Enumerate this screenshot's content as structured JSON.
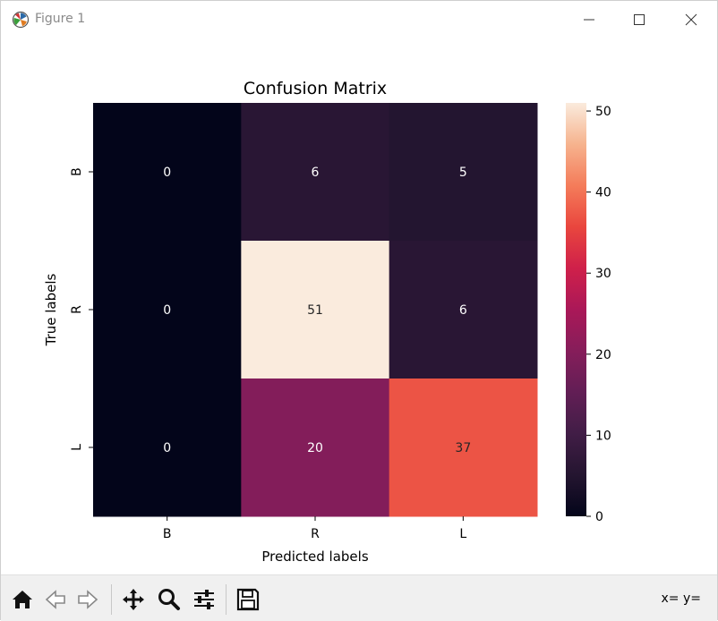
{
  "window": {
    "title": "Figure 1",
    "icons": {
      "app": "matplotlib-logo-icon",
      "minimize": "minimize-icon",
      "maximize": "maximize-icon",
      "close": "close-icon"
    }
  },
  "toolbar": {
    "buttons": [
      {
        "name": "home-button",
        "icon": "home-icon"
      },
      {
        "name": "back-button",
        "icon": "arrow-left-icon"
      },
      {
        "name": "forward-button",
        "icon": "arrow-right-icon"
      },
      {
        "name": "pan-button",
        "icon": "move-icon"
      },
      {
        "name": "zoom-button",
        "icon": "magnifier-icon"
      },
      {
        "name": "configure-subplots-button",
        "icon": "sliders-icon"
      },
      {
        "name": "save-button",
        "icon": "floppy-disk-icon"
      }
    ],
    "coords_text": "x= y="
  },
  "chart_data": {
    "type": "heatmap",
    "title": "Confusion Matrix",
    "xlabel": "Predicted labels",
    "ylabel": "True labels",
    "x_categories": [
      "B",
      "R",
      "L"
    ],
    "y_categories": [
      "B",
      "R",
      "L"
    ],
    "values": [
      [
        0,
        6,
        5
      ],
      [
        0,
        51,
        6
      ],
      [
        0,
        20,
        37
      ]
    ],
    "annotations": true,
    "colormap": "rocket",
    "colorbar": {
      "min": 0,
      "max": 51,
      "ticks": [
        "0",
        "10",
        "20",
        "30",
        "40",
        "50"
      ]
    },
    "colors": {
      "dark_text": "#262626",
      "light_text": "#ffffff"
    }
  }
}
